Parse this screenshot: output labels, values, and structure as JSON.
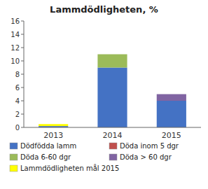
{
  "chart_data": {
    "type": "bar",
    "stacked": true,
    "title": "Lammdödligheten, %",
    "categories": [
      "2013",
      "2014",
      "2015"
    ],
    "series": [
      {
        "name": "Dödfödda lamm",
        "color": "#4472C4",
        "values": [
          0.2,
          9.0,
          4.0
        ]
      },
      {
        "name": "Döda inom 5 dgr",
        "color": "#C0504D",
        "values": [
          0.0,
          0.0,
          0.0
        ]
      },
      {
        "name": "Döda 6-60 dgr",
        "color": "#9BBB59",
        "values": [
          0.0,
          2.0,
          0.0
        ]
      },
      {
        "name": "Döda > 60 dgr",
        "color": "#8064A2",
        "values": [
          0.0,
          0.0,
          1.0
        ]
      },
      {
        "name": "Lammdödligheten mål 2015",
        "color": "#FFFF00",
        "values": [
          0.3,
          0.0,
          0.0
        ]
      }
    ],
    "ylim": [
      0,
      16
    ],
    "yticks": [
      0,
      2,
      4,
      6,
      8,
      10,
      12,
      14,
      16
    ],
    "grid": false,
    "legend": "bottom"
  }
}
